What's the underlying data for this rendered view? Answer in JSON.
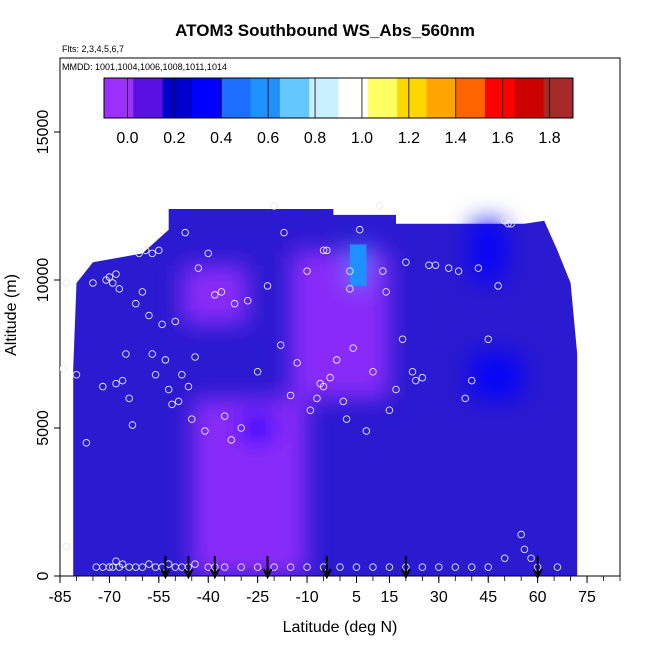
{
  "chart_data": {
    "type": "heatmap",
    "title": "ATOM3 Southbound WS_Abs_560nm",
    "flights_label": "Flts: 2,3,4,5,6,7",
    "dates_label": "MMDD: 1001,1004,1006,1008,1011,1014",
    "xlabel": "Latitude (deg N)",
    "ylabel": "Altitude (m)",
    "xlim": [
      -85,
      85
    ],
    "ylim": [
      0,
      17500
    ],
    "x_ticks": [
      -85,
      -70,
      -55,
      -40,
      -25,
      -10,
      5,
      15,
      30,
      45,
      60,
      75
    ],
    "y_ticks": [
      0,
      5000,
      10000,
      15000
    ],
    "colorbar": {
      "ticks": [
        "0.0",
        "0.2",
        "0.4",
        "0.6",
        "0.8",
        "1.0",
        "1.2",
        "1.4",
        "1.6",
        "1.8"
      ],
      "range": [
        -0.1,
        1.9
      ],
      "colors": [
        "#9b30ff",
        "#5a10e0",
        "#0000cd",
        "#0000ff",
        "#1e6eff",
        "#1e90ff",
        "#64c8ff",
        "#c8f0ff",
        "#ffffff",
        "#ffff64",
        "#ffd700",
        "#ffa500",
        "#ff6400",
        "#ff0000",
        "#cd0000",
        "#a52a2a"
      ]
    },
    "grid": false,
    "background_color": "#2a1ad0",
    "features": [
      {
        "lat_range": [
          -48,
          -28
        ],
        "alt_range": [
          8500,
          10500
        ],
        "value": 0.0
      },
      {
        "lat_range": [
          -15,
          15
        ],
        "alt_range": [
          6000,
          11000
        ],
        "value": -0.05
      },
      {
        "lat_range": [
          -45,
          -10
        ],
        "alt_range": [
          0,
          6000
        ],
        "value": 0.0
      },
      {
        "lat_range": [
          3,
          8
        ],
        "alt_range": [
          9800,
          11200
        ],
        "value": 0.6
      },
      {
        "lat_range": [
          40,
          55
        ],
        "alt_range": [
          6000,
          7500
        ],
        "value": 0.35
      },
      {
        "lat_range": [
          -30,
          -20
        ],
        "alt_range": [
          4500,
          5500
        ],
        "value": 0.3
      },
      {
        "lat_range": [
          40,
          50
        ],
        "alt_range": [
          10000,
          12000
        ],
        "value": 0.3
      }
    ],
    "observations": [
      [
        -84,
        7000
      ],
      [
        -83,
        9900
      ],
      [
        -80,
        6800
      ],
      [
        -77,
        4500
      ],
      [
        -75,
        9900
      ],
      [
        -72,
        6400
      ],
      [
        -71,
        10000
      ],
      [
        -70,
        10100
      ],
      [
        -69,
        9900
      ],
      [
        -68,
        10200
      ],
      [
        -68,
        6500
      ],
      [
        -67,
        9700
      ],
      [
        -66,
        6600
      ],
      [
        -65,
        7500
      ],
      [
        -64,
        6000
      ],
      [
        -63,
        5100
      ],
      [
        -62,
        9200
      ],
      [
        -61,
        10900
      ],
      [
        -60,
        9600
      ],
      [
        -59,
        11000
      ],
      [
        -58,
        8800
      ],
      [
        -57,
        10900
      ],
      [
        -57,
        7500
      ],
      [
        -56,
        6800
      ],
      [
        -55,
        11000
      ],
      [
        -54,
        8500
      ],
      [
        -53,
        7300
      ],
      [
        -52,
        6300
      ],
      [
        -51,
        5800
      ],
      [
        -50,
        8600
      ],
      [
        -49,
        5900
      ],
      [
        -48,
        6800
      ],
      [
        -47,
        11600
      ],
      [
        -46,
        6400
      ],
      [
        -45,
        5300
      ],
      [
        -44,
        7400
      ],
      [
        -43,
        10400
      ],
      [
        -41,
        4900
      ],
      [
        -40,
        10900
      ],
      [
        -38,
        9500
      ],
      [
        -36,
        9600
      ],
      [
        -35,
        5400
      ],
      [
        -33,
        4600
      ],
      [
        -32,
        9200
      ],
      [
        -30,
        5000
      ],
      [
        -28,
        9300
      ],
      [
        -25,
        6900
      ],
      [
        -22,
        9800
      ],
      [
        -20,
        12500
      ],
      [
        -18,
        7800
      ],
      [
        -17,
        11600
      ],
      [
        -15,
        6100
      ],
      [
        -13,
        7200
      ],
      [
        -10,
        10300
      ],
      [
        -9,
        5600
      ],
      [
        -7,
        6000
      ],
      [
        -6,
        6500
      ],
      [
        -5,
        6400
      ],
      [
        -5,
        11000
      ],
      [
        -4,
        11000
      ],
      [
        -3,
        6700
      ],
      [
        -1,
        7300
      ],
      [
        1,
        5900
      ],
      [
        2,
        5300
      ],
      [
        3,
        9700
      ],
      [
        3,
        10300
      ],
      [
        4,
        7700
      ],
      [
        6,
        11700
      ],
      [
        8,
        4900
      ],
      [
        10,
        6900
      ],
      [
        12,
        12500
      ],
      [
        13,
        10300
      ],
      [
        14,
        9600
      ],
      [
        15,
        5600
      ],
      [
        17,
        6300
      ],
      [
        19,
        8000
      ],
      [
        20,
        10600
      ],
      [
        22,
        6900
      ],
      [
        23,
        6600
      ],
      [
        25,
        6700
      ],
      [
        27,
        10500
      ],
      [
        29,
        10500
      ],
      [
        33,
        10400
      ],
      [
        36,
        10300
      ],
      [
        38,
        6000
      ],
      [
        40,
        6600
      ],
      [
        42,
        10400
      ],
      [
        45,
        8000
      ],
      [
        48,
        9800
      ],
      [
        50,
        12000
      ],
      [
        51,
        11900
      ],
      [
        52,
        11900
      ],
      [
        55,
        1400
      ],
      [
        -83,
        1000
      ],
      [
        -74,
        300
      ],
      [
        -72,
        300
      ],
      [
        -70,
        300
      ],
      [
        -69,
        300
      ],
      [
        -68,
        500
      ],
      [
        -67,
        300
      ],
      [
        -66,
        400
      ],
      [
        -64,
        300
      ],
      [
        -62,
        300
      ],
      [
        -60,
        300
      ],
      [
        -58,
        400
      ],
      [
        -56,
        300
      ],
      [
        -54,
        300
      ],
      [
        -52,
        400
      ],
      [
        -50,
        300
      ],
      [
        -48,
        300
      ],
      [
        -46,
        300
      ],
      [
        -44,
        400
      ],
      [
        -40,
        300
      ],
      [
        -38,
        300
      ],
      [
        -35,
        300
      ],
      [
        -30,
        300
      ],
      [
        -25,
        300
      ],
      [
        -20,
        300
      ],
      [
        -15,
        300
      ],
      [
        -10,
        300
      ],
      [
        -5,
        300
      ],
      [
        0,
        300
      ],
      [
        5,
        300
      ],
      [
        10,
        300
      ],
      [
        15,
        300
      ],
      [
        20,
        300
      ],
      [
        25,
        300
      ],
      [
        30,
        300
      ],
      [
        35,
        300
      ],
      [
        40,
        300
      ],
      [
        45,
        300
      ],
      [
        50,
        600
      ],
      [
        56,
        900
      ],
      [
        58,
        600
      ],
      [
        60,
        300
      ],
      [
        66,
        300
      ]
    ],
    "arrows_lat": [
      -53,
      -46,
      -38,
      -22,
      -4,
      20,
      60
    ]
  }
}
